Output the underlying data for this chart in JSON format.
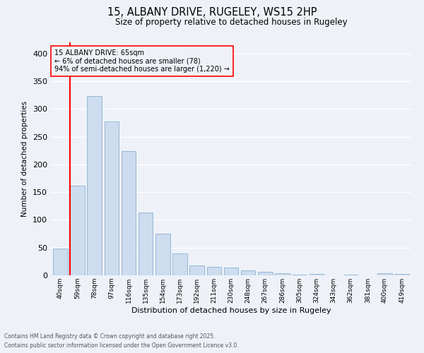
{
  "title": "15, ALBANY DRIVE, RUGELEY, WS15 2HP",
  "subtitle": "Size of property relative to detached houses in Rugeley",
  "xlabel": "Distribution of detached houses by size in Rugeley",
  "ylabel": "Number of detached properties",
  "bar_color": "#cddcee",
  "bar_edge_color": "#8ab0d0",
  "categories": [
    "40sqm",
    "59sqm",
    "78sqm",
    "97sqm",
    "116sqm",
    "135sqm",
    "154sqm",
    "173sqm",
    "192sqm",
    "211sqm",
    "230sqm",
    "248sqm",
    "267sqm",
    "286sqm",
    "305sqm",
    "324sqm",
    "343sqm",
    "362sqm",
    "381sqm",
    "400sqm",
    "419sqm"
  ],
  "values": [
    48,
    162,
    323,
    277,
    224,
    113,
    75,
    39,
    18,
    15,
    14,
    9,
    7,
    4,
    1,
    3,
    0,
    1,
    0,
    4,
    2
  ],
  "red_line_index": 1,
  "annotation_title": "15 ALBANY DRIVE: 65sqm",
  "annotation_line1": "← 6% of detached houses are smaller (78)",
  "annotation_line2": "94% of semi-detached houses are larger (1,220) →",
  "ylim": [
    0,
    420
  ],
  "yticks": [
    0,
    50,
    100,
    150,
    200,
    250,
    300,
    350,
    400
  ],
  "footnote1": "Contains HM Land Registry data © Crown copyright and database right 2025.",
  "footnote2": "Contains public sector information licensed under the Open Government Licence v3.0.",
  "background_color": "#eef2f8",
  "grid_color": "#ffffff"
}
